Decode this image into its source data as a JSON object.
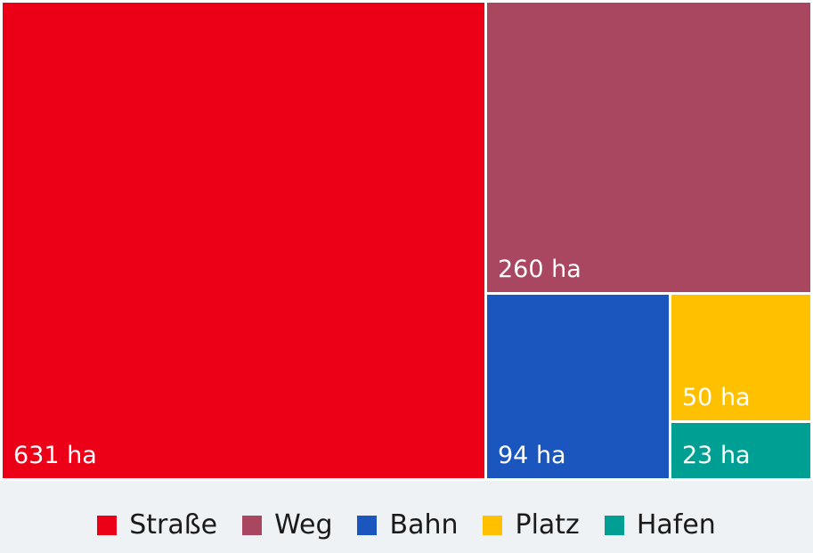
{
  "chart_data": {
    "type": "treemap",
    "unit": "ha",
    "items": [
      {
        "name": "Straße",
        "value": 631,
        "label": "631 ha",
        "color": "#eb0017"
      },
      {
        "name": "Weg",
        "value": 260,
        "label": "260 ha",
        "color": "#a94660"
      },
      {
        "name": "Bahn",
        "value": 94,
        "label": "94 ha",
        "color": "#1a56be"
      },
      {
        "name": "Platz",
        "value": 50,
        "label": "50 ha",
        "color": "#ffc000"
      },
      {
        "name": "Hafen",
        "value": 23,
        "label": "23 ha",
        "color": "#009f93"
      }
    ],
    "legend_position": "bottom"
  }
}
